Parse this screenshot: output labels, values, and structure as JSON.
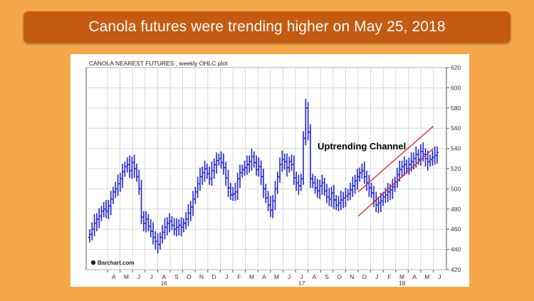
{
  "banner": {
    "title": "Canola futures were trending higher on May 25, 2018"
  },
  "colors": {
    "background": "#f6a74a",
    "banner": "#c55a11",
    "series": "#1f23d6",
    "channel": "#d9261c",
    "grid": "#c8c8c8"
  },
  "chart_data": {
    "type": "ohlc",
    "title": "CANOLA NEAREST FUTURES , weekly OHLC plot",
    "watermark": "Barchart.com",
    "annotation": "Uptrending Channel",
    "ylim": [
      420,
      620
    ],
    "yticks": [
      420,
      440,
      460,
      480,
      500,
      520,
      540,
      560,
      580,
      600,
      620
    ],
    "y_axis_side": "right",
    "grid": true,
    "month_labels": [
      "A",
      "M",
      "J",
      "J",
      "A",
      "S",
      "O",
      "N",
      "D",
      "J",
      "F",
      "M",
      "A",
      "M",
      "J",
      "J",
      "A",
      "S",
      "O",
      "N",
      "D",
      "J",
      "F",
      "M",
      "A",
      "M",
      "J"
    ],
    "year_labels": [
      {
        "label": "16",
        "month_index": 4
      },
      {
        "label": "17",
        "month_index": 15
      },
      {
        "label": "18",
        "month_index": 23
      }
    ],
    "x_start": "2016-04",
    "frequency": "weekly",
    "series": [
      {
        "name": "Canola nearest futures",
        "close": [
          455,
          460,
          466,
          470,
          473,
          478,
          480,
          478,
          483,
          490,
          497,
          500,
          505,
          510,
          517,
          522,
          524,
          518,
          526,
          520,
          512,
          500,
          472,
          466,
          470,
          463,
          458,
          452,
          448,
          445,
          452,
          457,
          462,
          466,
          468,
          464,
          460,
          462,
          464,
          462,
          466,
          470,
          476,
          482,
          490,
          497,
          505,
          512,
          516,
          520,
          515,
          510,
          518,
          524,
          528,
          530,
          526,
          521,
          511,
          501,
          494,
          495,
          497,
          510,
          516,
          519,
          521,
          524,
          527,
          532,
          526,
          519,
          522,
          512,
          500,
          491,
          484,
          479,
          488,
          500,
          512,
          524,
          529,
          527,
          521,
          527,
          524,
          511,
          506,
          503,
          510,
          550,
          580,
          556,
          510,
          506,
          501,
          498,
          503,
          506,
          498,
          492,
          490,
          496,
          489,
          484,
          486,
          489,
          491,
          493,
          495,
          499,
          503,
          508,
          512,
          516,
          518,
          512,
          506,
          501,
          496,
          488,
          484,
          486,
          488,
          492,
          494,
          497,
          499,
          502,
          507,
          514,
          519,
          522,
          524,
          520,
          524,
          527,
          530,
          534,
          529,
          537,
          534,
          530,
          527,
          529,
          531,
          533,
          536
        ]
      }
    ],
    "channel": {
      "upper": {
        "start": [
          "2017-12",
          497
        ],
        "end": [
          "2018-06",
          562
        ]
      },
      "lower": {
        "start": [
          "2017-12",
          473
        ],
        "end": [
          "2018-06",
          540
        ]
      }
    }
  }
}
